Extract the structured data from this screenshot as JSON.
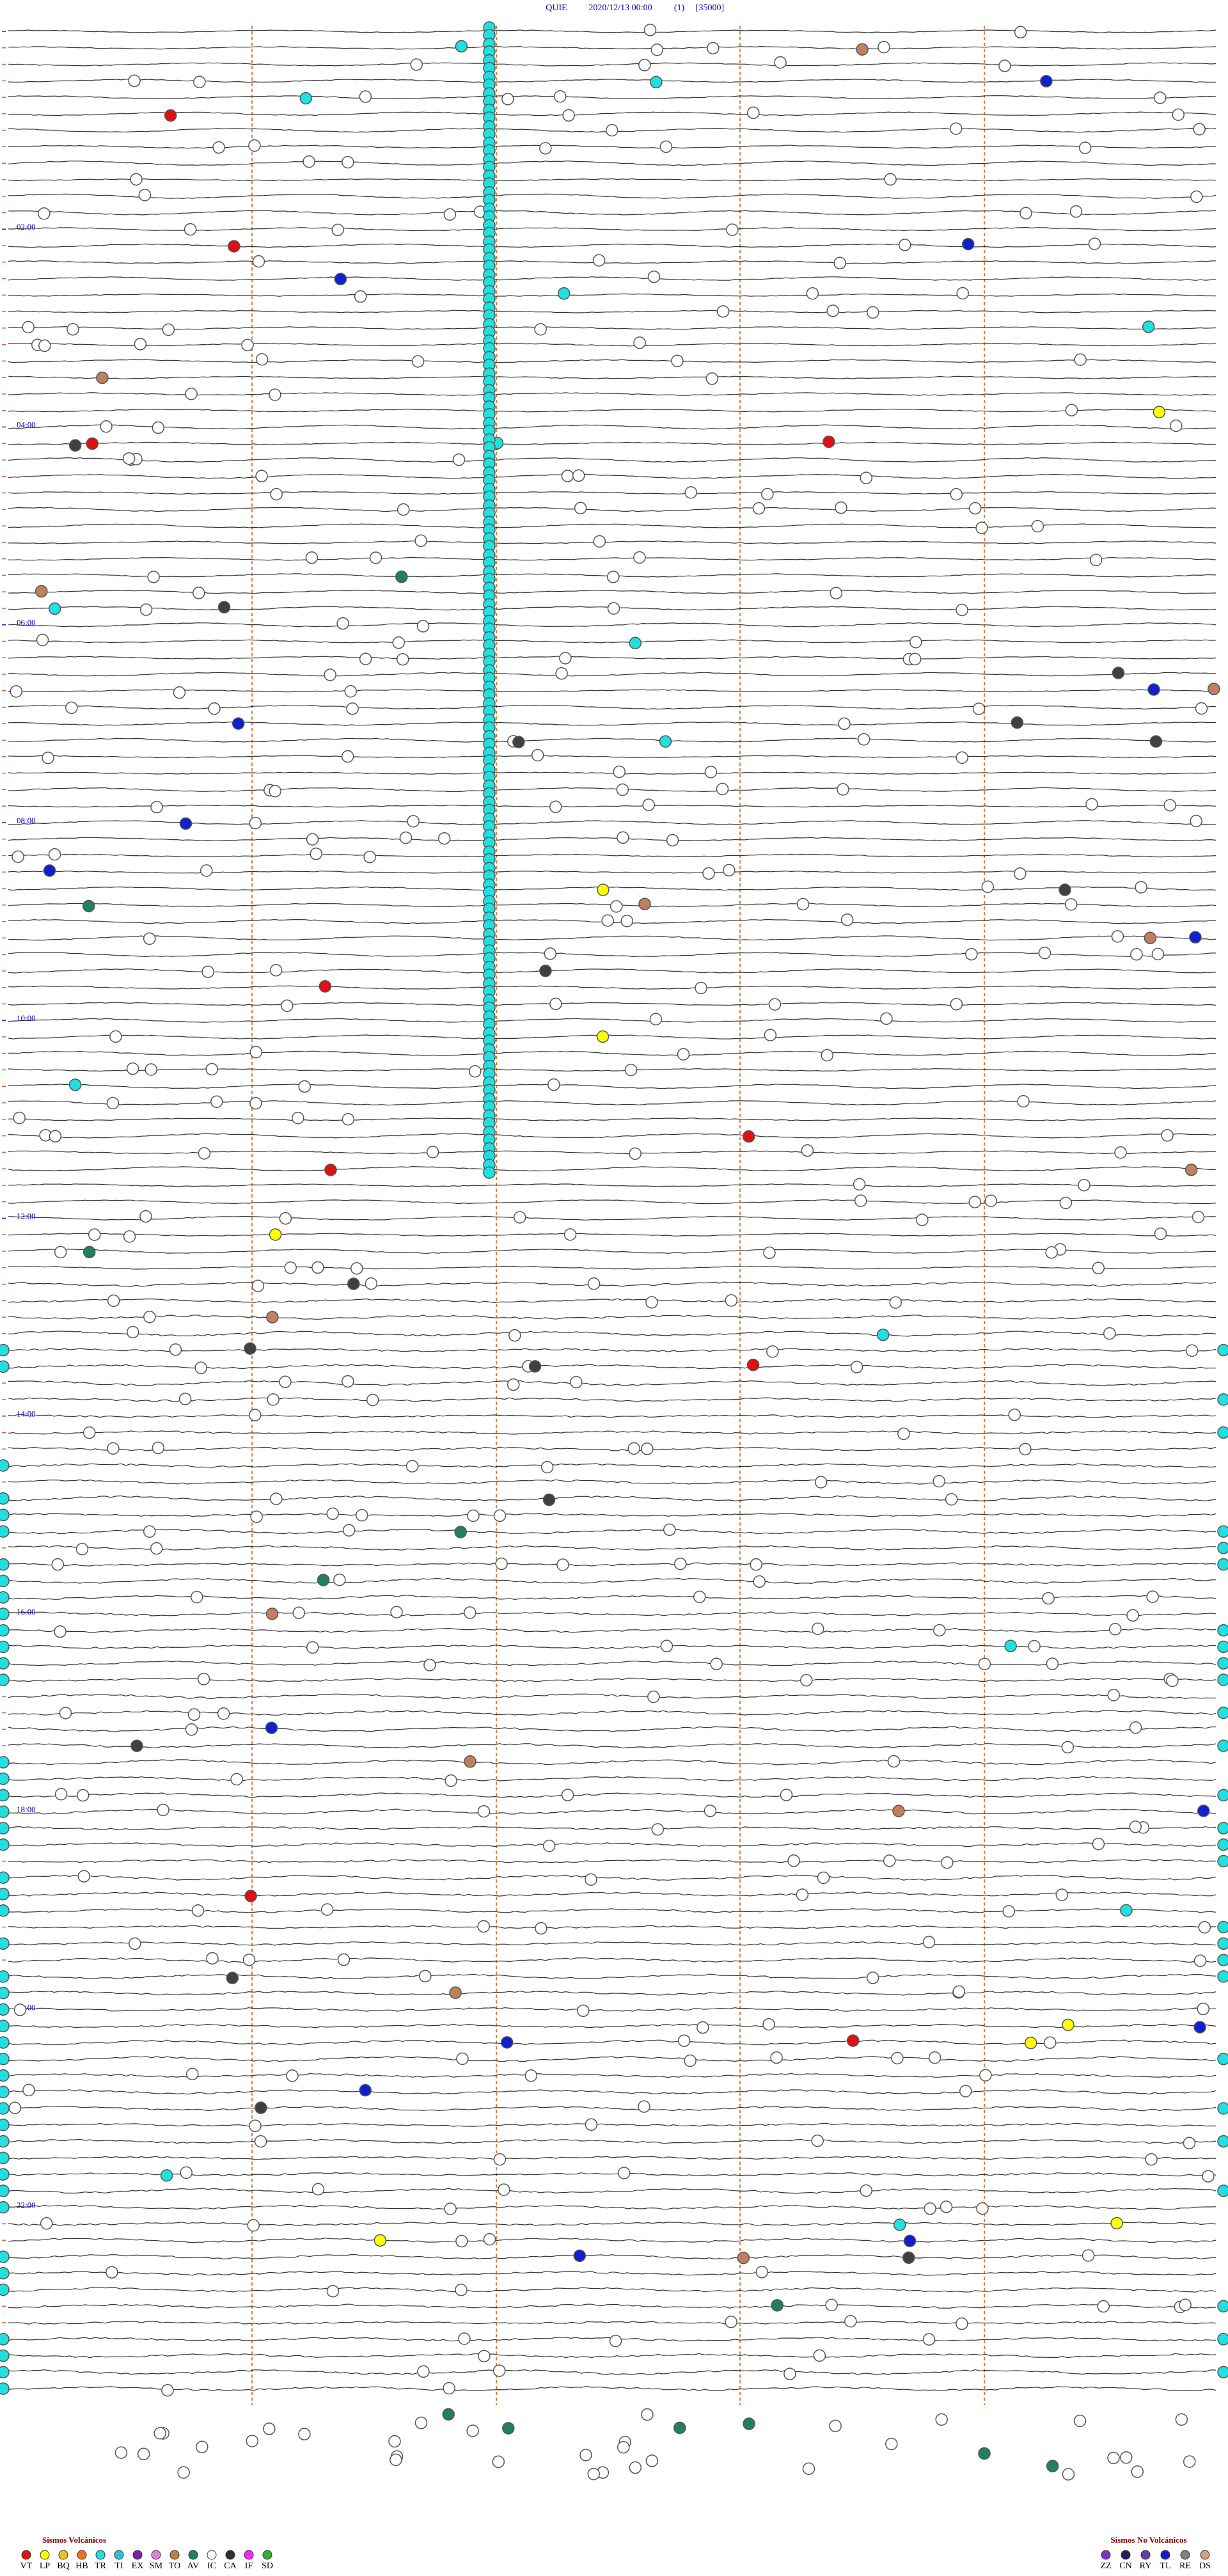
{
  "header": {
    "station": "QUIE",
    "datetime": "2020/12/13 00:00",
    "channel": "(1)",
    "scale": "[35000]"
  },
  "time_labels": [
    "02:00",
    "04:00",
    "06:00",
    "08:00",
    "10:00",
    "12:00",
    "14:00",
    "16:00",
    "18:00",
    "20:00",
    "22:00"
  ],
  "legend": {
    "volcanic": {
      "title": "Sismos Volcánicos",
      "items": [
        {
          "label": "VT",
          "color": "#e01010"
        },
        {
          "label": "LP",
          "color": "#ffff00"
        },
        {
          "label": "BQ",
          "color": "#f0c020"
        },
        {
          "label": "HB",
          "color": "#f07020"
        },
        {
          "label": "TR",
          "color": "#20e0e0"
        },
        {
          "label": "TI",
          "color": "#30c0d0"
        },
        {
          "label": "EX",
          "color": "#8020a0"
        },
        {
          "label": "SM",
          "color": "#e080e0"
        },
        {
          "label": "TO",
          "color": "#c08040"
        },
        {
          "label": "AV",
          "color": "#208060"
        },
        {
          "label": "IC",
          "color": "#ffffff"
        },
        {
          "label": "CA",
          "color": "#303030"
        },
        {
          "label": "IF",
          "color": "#ff20ff"
        },
        {
          "label": "SD",
          "color": "#30b030"
        }
      ]
    },
    "non_volcanic": {
      "title": "Sismos No Volcánicos",
      "items": [
        {
          "label": "ZZ",
          "color": "#8030c0"
        },
        {
          "label": "CN",
          "color": "#202060"
        },
        {
          "label": "RY",
          "color": "#6040a0"
        },
        {
          "label": "TL",
          "color": "#1020d0"
        },
        {
          "label": "RE",
          "color": "#808080"
        },
        {
          "label": "DS",
          "color": "#d0a080"
        }
      ]
    }
  }
}
